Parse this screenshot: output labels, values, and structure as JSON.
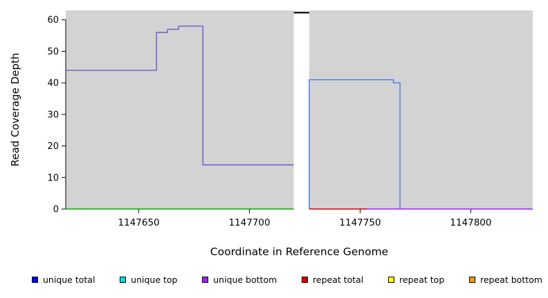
{
  "chart_data": {
    "type": "line",
    "subtype": "step-coverage-plot",
    "title": "",
    "xlabel": "Coordinate in Reference Genome",
    "ylabel": "Read Coverage Depth",
    "xlim": [
      1147617,
      1147828
    ],
    "ylim": [
      0,
      63
    ],
    "xticks": [
      1147650,
      1147700,
      1147750,
      1147800
    ],
    "yticks": [
      0,
      10,
      20,
      30,
      40,
      50,
      60
    ],
    "plot_background": "#d3d3d3",
    "axis_color": "#000000",
    "grid": false,
    "gap_region": {
      "x0": 1147720,
      "x1": 1147727,
      "fill": "#ffffff"
    },
    "offscale_marker": {
      "x0": 1147720,
      "x1": 1147727,
      "y": 62.3,
      "color": "#1c1c1c"
    },
    "series": [
      {
        "id": "unique-coverage-left",
        "name": "unique coverage left segment",
        "color": "#6a5acd",
        "points": [
          [
            1147617,
            44
          ],
          [
            1147658,
            44
          ],
          [
            1147658,
            56
          ],
          [
            1147663,
            56
          ],
          [
            1147663,
            57
          ],
          [
            1147668,
            57
          ],
          [
            1147668,
            58
          ],
          [
            1147679,
            58
          ],
          [
            1147679,
            14
          ],
          [
            1147720,
            14
          ]
        ]
      },
      {
        "id": "zero-baseline-left-green",
        "name": "zero baseline left (green)",
        "color": "#00aa00",
        "points": [
          [
            1147617,
            0
          ],
          [
            1147720,
            0
          ]
        ]
      },
      {
        "id": "unique-coverage-right",
        "name": "unique coverage right block",
        "color": "#4876ee",
        "points": [
          [
            1147727,
            0
          ],
          [
            1147727,
            41
          ],
          [
            1147765,
            41
          ],
          [
            1147765,
            40
          ],
          [
            1147768,
            40
          ],
          [
            1147768,
            0
          ]
        ]
      },
      {
        "id": "repeat-baseline-red",
        "name": "repeat baseline (red)",
        "color": "#cc0000",
        "points": [
          [
            1147727,
            0
          ],
          [
            1147753,
            0
          ]
        ]
      },
      {
        "id": "zero-baseline-right-purple",
        "name": "zero baseline right (purple)",
        "color": "#a020f0",
        "points": [
          [
            1147753,
            0
          ],
          [
            1147828,
            0
          ]
        ]
      }
    ],
    "legend_position": "bottom",
    "legend": [
      {
        "label": "unique total",
        "color": "#0000ee"
      },
      {
        "label": "unique top",
        "color": "#00dddd"
      },
      {
        "label": "unique bottom",
        "color": "#a020f0"
      },
      {
        "label": "repeat total",
        "color": "#dd0000"
      },
      {
        "label": "repeat top",
        "color": "#ffff00"
      },
      {
        "label": "repeat bottom",
        "color": "#ff9900"
      }
    ]
  }
}
